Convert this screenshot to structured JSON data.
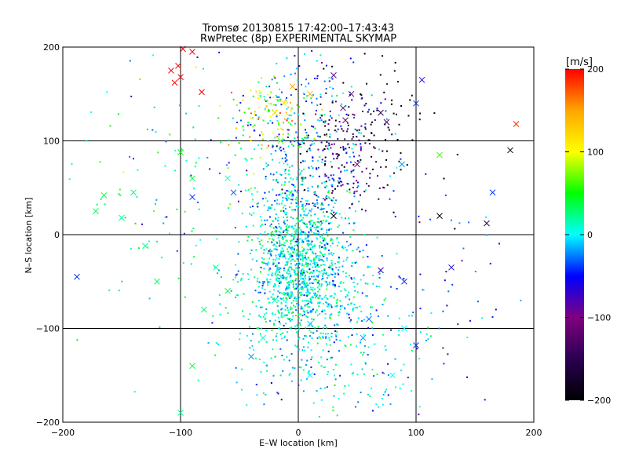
{
  "title": {
    "line1": "Tromsø 20130815 17:42:00–17:43:43",
    "line2": "RwPretec (8p) EXPERIMENTAL SKYMAP"
  },
  "colorbar": {
    "unit_label": "[m/s]",
    "ticks": [
      "200",
      "100",
      "0",
      "−100",
      "−200"
    ],
    "colors": [
      "#000000",
      "#2a0052",
      "#7f007f",
      "#0000ff",
      "#00ffff",
      "#00ff00",
      "#ffff00",
      "#ffa500",
      "#ff0000"
    ]
  },
  "chart_data": {
    "type": "scatter",
    "title": "Tromsø 20130815 17:42:00–17:43:43",
    "subtitle": "RwPretec (8p) EXPERIMENTAL SKYMAP",
    "xlabel": "E–W location [km]",
    "ylabel": "N–S location [km]",
    "xlim": [
      -200,
      200
    ],
    "ylim": [
      -200,
      200
    ],
    "xticks": [
      "−200",
      "−100",
      "0",
      "100",
      "200"
    ],
    "yticks": [
      "200",
      "100",
      "0",
      "−100",
      "−200"
    ],
    "color_label": "[m/s]",
    "color_range": [
      -200,
      200
    ],
    "grid": true,
    "clusters": [
      {
        "cx": 0,
        "cy": -20,
        "sx": 18,
        "sy": 40,
        "n": 900,
        "v": 5,
        "vs": 25
      },
      {
        "cx": 10,
        "cy": -60,
        "sx": 28,
        "sy": 30,
        "n": 350,
        "v": 0,
        "vs": 20
      },
      {
        "cx": 20,
        "cy": -130,
        "sx": 40,
        "sy": 40,
        "n": 250,
        "v": 0,
        "vs": 25
      },
      {
        "cx": 5,
        "cy": 90,
        "sx": 28,
        "sy": 55,
        "n": 350,
        "v": -30,
        "vs": 30
      },
      {
        "cx": 45,
        "cy": 85,
        "sx": 15,
        "sy": 35,
        "n": 120,
        "v": -110,
        "vs": 50
      },
      {
        "cx": 60,
        "cy": 110,
        "sx": 35,
        "sy": 40,
        "n": 110,
        "v": -195,
        "vs": 10
      },
      {
        "cx": -20,
        "cy": 130,
        "sx": 18,
        "sy": 20,
        "n": 110,
        "v": 85,
        "vs": 40
      },
      {
        "cx": -80,
        "cy": 40,
        "sx": 60,
        "sy": 80,
        "n": 150,
        "v": 20,
        "vs": 30
      },
      {
        "cx": 90,
        "cy": -60,
        "sx": 50,
        "sy": 60,
        "n": 90,
        "v": -40,
        "vs": 25
      }
    ],
    "crosses": [
      {
        "x": -105,
        "y": 162,
        "v": 200
      },
      {
        "x": -100,
        "y": 168,
        "v": 200
      },
      {
        "x": -102,
        "y": 180,
        "v": 200
      },
      {
        "x": -98,
        "y": 198,
        "v": 200
      },
      {
        "x": -90,
        "y": 195,
        "v": 200
      },
      {
        "x": -82,
        "y": 152,
        "v": 200
      },
      {
        "x": -108,
        "y": 175,
        "v": 200
      },
      {
        "x": 185,
        "y": 118,
        "v": 190
      },
      {
        "x": -20,
        "y": 130,
        "v": 120
      },
      {
        "x": -5,
        "y": 158,
        "v": 150
      },
      {
        "x": -12,
        "y": 140,
        "v": 110
      },
      {
        "x": 40,
        "y": 122,
        "v": -110
      },
      {
        "x": 38,
        "y": 135,
        "v": -120
      },
      {
        "x": 50,
        "y": 75,
        "v": -100
      },
      {
        "x": 45,
        "y": 150,
        "v": -100
      },
      {
        "x": 30,
        "y": 170,
        "v": -90
      },
      {
        "x": 70,
        "y": 130,
        "v": -150
      },
      {
        "x": 75,
        "y": 120,
        "v": -140
      },
      {
        "x": 160,
        "y": 12,
        "v": -150
      },
      {
        "x": 180,
        "y": 90,
        "v": -200
      },
      {
        "x": 120,
        "y": 20,
        "v": -200
      },
      {
        "x": 30,
        "y": 20,
        "v": -200
      },
      {
        "x": 105,
        "y": 165,
        "v": -60
      },
      {
        "x": 70,
        "y": -38,
        "v": -70
      },
      {
        "x": -188,
        "y": -45,
        "v": -40
      },
      {
        "x": 130,
        "y": -35,
        "v": -60
      },
      {
        "x": -165,
        "y": 42,
        "v": 40
      },
      {
        "x": -150,
        "y": 18,
        "v": 20
      },
      {
        "x": -172,
        "y": 25,
        "v": 30
      },
      {
        "x": -130,
        "y": -12,
        "v": 20
      },
      {
        "x": -90,
        "y": 60,
        "v": 40
      },
      {
        "x": -100,
        "y": 88,
        "v": 50
      },
      {
        "x": -90,
        "y": 40,
        "v": -40
      },
      {
        "x": -60,
        "y": 60,
        "v": 10
      },
      {
        "x": -55,
        "y": 45,
        "v": -30
      },
      {
        "x": 120,
        "y": 85,
        "v": 60
      },
      {
        "x": 90,
        "y": -50,
        "v": -40
      },
      {
        "x": 100,
        "y": -118,
        "v": -40
      },
      {
        "x": 80,
        "y": -150,
        "v": 0
      },
      {
        "x": -40,
        "y": -130,
        "v": -20
      },
      {
        "x": -100,
        "y": -190,
        "v": 20
      },
      {
        "x": -30,
        "y": -110,
        "v": 10
      },
      {
        "x": -20,
        "y": -70,
        "v": 10
      },
      {
        "x": -80,
        "y": -80,
        "v": 30
      },
      {
        "x": -60,
        "y": -60,
        "v": 40
      },
      {
        "x": 10,
        "y": -150,
        "v": 0
      },
      {
        "x": 10,
        "y": -95,
        "v": -10
      },
      {
        "x": 60,
        "y": -90,
        "v": -30
      },
      {
        "x": 90,
        "y": -100,
        "v": 0
      },
      {
        "x": -120,
        "y": -50,
        "v": 30
      },
      {
        "x": -90,
        "y": -140,
        "v": 40
      },
      {
        "x": 55,
        "y": -110,
        "v": -20
      },
      {
        "x": -140,
        "y": 45,
        "v": 30
      },
      {
        "x": -70,
        "y": -35,
        "v": 20
      },
      {
        "x": 165,
        "y": 45,
        "v": -40
      },
      {
        "x": 100,
        "y": 140,
        "v": -40
      },
      {
        "x": 88,
        "y": 75,
        "v": -20
      },
      {
        "x": -15,
        "y": 100,
        "v": 70
      },
      {
        "x": 10,
        "y": 150,
        "v": 140
      }
    ]
  }
}
